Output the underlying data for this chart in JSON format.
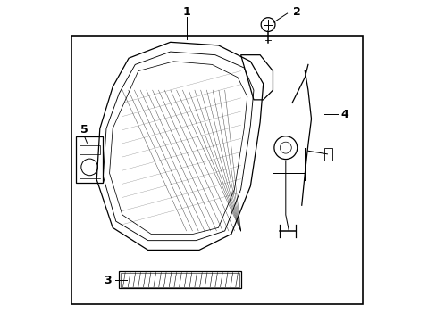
{
  "background_color": "#ffffff",
  "border_color": "#000000",
  "line_color": "#000000",
  "label_color": "#000000",
  "fig_width": 4.89,
  "fig_height": 3.6,
  "dpi": 100
}
